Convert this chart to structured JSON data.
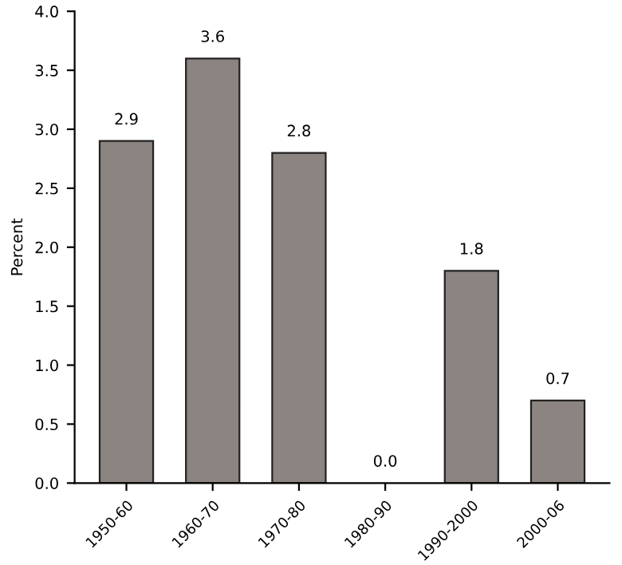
{
  "chart_data": {
    "type": "bar",
    "ylabel": "Percent",
    "categories": [
      "1950-60",
      "1960-70",
      "1970-80",
      "1980-90",
      "1990-2000",
      "2000-06"
    ],
    "values": [
      2.9,
      3.6,
      2.8,
      0.0,
      1.8,
      0.7
    ],
    "value_labels": [
      "2.9",
      "3.6",
      "2.8",
      "0.0",
      "1.8",
      "0.7"
    ],
    "color": "#8c8480",
    "ylim": [
      0,
      4
    ],
    "yticks": [
      {
        "value": 0,
        "label": "0.0"
      },
      {
        "value": 0.5,
        "label": "0.5"
      },
      {
        "value": 1,
        "label": "1.0"
      },
      {
        "value": 1.5,
        "label": "1.5"
      },
      {
        "value": 2,
        "label": "2.0"
      },
      {
        "value": 2.5,
        "label": "2.5"
      },
      {
        "value": 3,
        "label": "3.0"
      },
      {
        "value": 3.5,
        "label": "3.5"
      },
      {
        "value": 4,
        "label": "4.0"
      }
    ],
    "grid": false,
    "legend": false
  }
}
